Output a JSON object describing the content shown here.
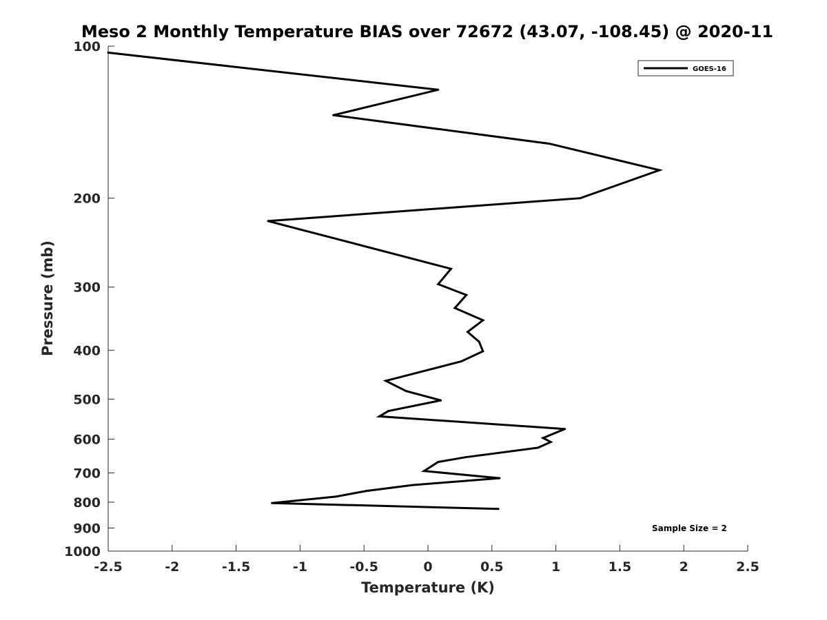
{
  "chart_data": {
    "type": "line",
    "title": "Meso 2 Monthly Temperature BIAS over 72672 (43.07, -108.45) @ 2020-11",
    "xlabel": "Temperature (K)",
    "ylabel": "Pressure (mb)",
    "xlim": [
      -2.5,
      2.5
    ],
    "ylim": [
      100,
      1000
    ],
    "y_scale": "log",
    "y_reversed": true,
    "x_ticks": [
      "-2.5",
      "-2",
      "-1.5",
      "-1",
      "-0.5",
      "0",
      "0.5",
      "1",
      "1.5",
      "2",
      "2.5"
    ],
    "y_ticks": [
      "100",
      "200",
      "300",
      "400",
      "500",
      "600",
      "700",
      "800",
      "900",
      "1000"
    ],
    "legend": {
      "entries": [
        "GOES-16"
      ],
      "placement": "top-right"
    },
    "annotation": "Sample Size = 2",
    "line_color": "#000000",
    "series": [
      {
        "name": "GOES-16",
        "x": [
          0.55,
          -1.22,
          -0.72,
          -0.48,
          -0.12,
          0.56,
          -0.03,
          0.08,
          0.29,
          0.86,
          0.96,
          0.9,
          1.07,
          -0.38,
          -0.31,
          0.1,
          -0.17,
          -0.33,
          0.26,
          0.43,
          0.4,
          0.31,
          0.43,
          0.21,
          0.3,
          0.08,
          0.18,
          -1.25,
          1.19,
          1.81,
          0.95,
          -0.74,
          0.08,
          -2.5
        ],
        "y": [
          825,
          803,
          780,
          760,
          740,
          717,
          694,
          666,
          652,
          624,
          608,
          597,
          573,
          541,
          528,
          503,
          482,
          460,
          421,
          402,
          385,
          368,
          349,
          330,
          311,
          296,
          276,
          222,
          200,
          176,
          156,
          137,
          122,
          103
        ]
      }
    ]
  }
}
